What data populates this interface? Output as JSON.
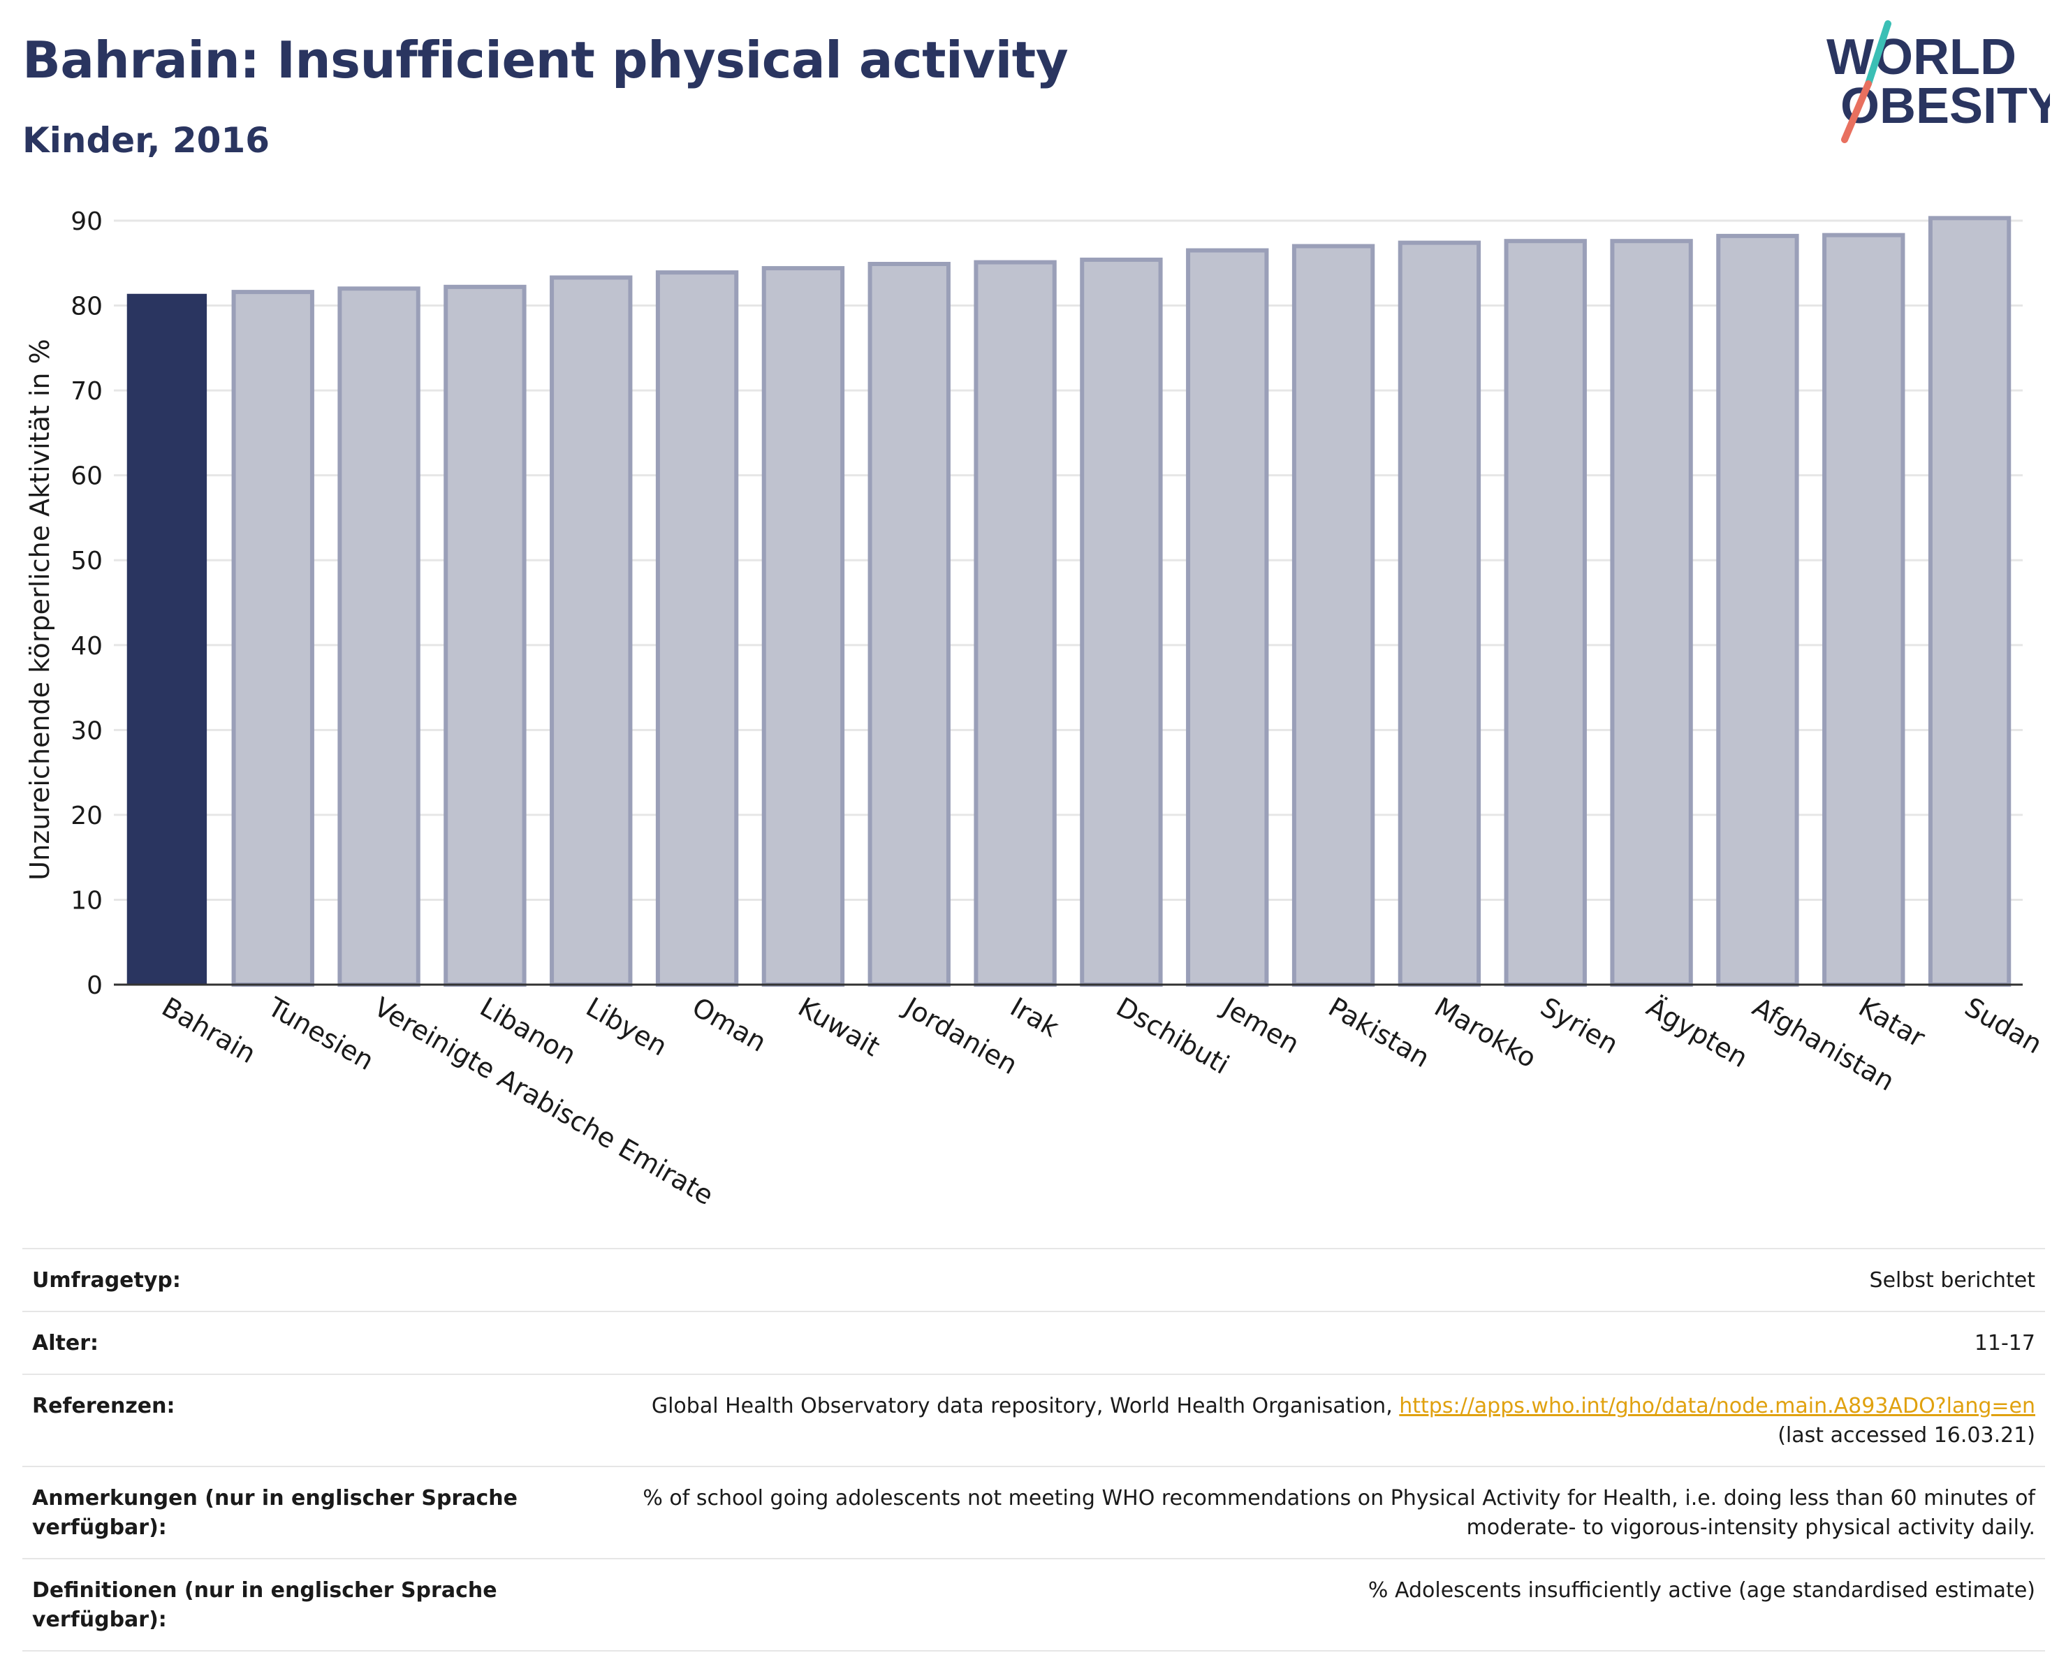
{
  "header": {
    "title": "Bahrain: Insufficient physical activity",
    "subtitle": "Kinder, 2016"
  },
  "logo": {
    "line1": "WORLD",
    "line2": "OBESITY",
    "colors": {
      "text": "#2a3560",
      "slash_top": "#3bbfb5",
      "slash_bottom": "#e8705f"
    }
  },
  "colors": {
    "highlight_bar": "#2a3560",
    "other_bar_fill": "#bfc2cf",
    "other_bar_stroke": "#9a9fb8",
    "grid": "#e6e6e6",
    "axis": "#333333"
  },
  "chart_data": {
    "type": "bar",
    "title": "Bahrain: Insufficient physical activity",
    "subtitle": "Kinder, 2016",
    "ylabel": "Unzureichende körperliche Aktivität in %",
    "xlabel": "",
    "ylim": [
      0,
      90
    ],
    "yticks": [
      0,
      10,
      20,
      30,
      40,
      50,
      60,
      70,
      80,
      90
    ],
    "grid": true,
    "highlight": "Bahrain",
    "categories": [
      "Bahrain",
      "Tunesien",
      "Vereinigte Arabische Emirate",
      "Libanon",
      "Libyen",
      "Oman",
      "Kuwait",
      "Jordanien",
      "Irak",
      "Dschibuti",
      "Jemen",
      "Pakistan",
      "Marokko",
      "Syrien",
      "Ägypten",
      "Afghanistan",
      "Katar",
      "Sudan"
    ],
    "values": [
      81.3,
      81.6,
      82.0,
      82.2,
      83.3,
      83.9,
      84.4,
      84.9,
      85.1,
      85.4,
      86.5,
      87.0,
      87.4,
      87.6,
      87.6,
      88.2,
      88.3,
      90.3
    ]
  },
  "info_table": [
    {
      "label": "Umfragetyp:",
      "value": "Selbst berichtet"
    },
    {
      "label": "Alter:",
      "value": "11-17"
    },
    {
      "label": "Referenzen:",
      "value": "Global Health Observatory data repository, World Health Organisation, ",
      "link": "https://apps.who.int/gho/data/node.main.A893ADO?lang=en",
      "value_suffix": "(last accessed 16.03.21)"
    },
    {
      "label": "Anmerkungen (nur in englischer Sprache verfügbar):",
      "value": "% of school going adolescents not meeting WHO recommendations on Physical Activity for Health, i.e. doing less than 60 minutes of moderate- to vigorous-intensity physical activity daily."
    },
    {
      "label": "Definitionen (nur in englischer Sprache verfügbar):",
      "value": "% Adolescents insufficiently active (age standardised estimate)"
    }
  ]
}
